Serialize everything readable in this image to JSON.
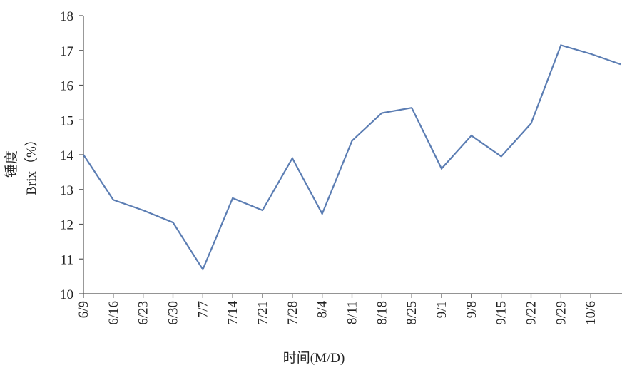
{
  "chart_data": {
    "type": "line",
    "y_label": [
      "锤度",
      "Brix（%）"
    ],
    "x_label": "时间(M/D)",
    "categories": [
      "6/9",
      "6/16",
      "6/23",
      "6/30",
      "7/7",
      "7/14",
      "7/21",
      "7/28",
      "8/4",
      "8/11",
      "8/18",
      "8/25",
      "9/1",
      "9/8",
      "9/15",
      "9/22",
      "9/29",
      "10/6",
      null
    ],
    "series": [
      {
        "color": "#5b7db3",
        "values": [
          14.0,
          12.7,
          12.4,
          12.05,
          10.7,
          12.75,
          12.4,
          13.9,
          12.3,
          14.4,
          15.2,
          15.35,
          13.6,
          14.55,
          13.95,
          14.9,
          17.15,
          16.9,
          16.6
        ]
      }
    ],
    "ylim": [
      10,
      18
    ],
    "yticks": [
      10,
      11,
      12,
      13,
      14,
      15,
      16,
      17,
      18
    ],
    "grid": false
  }
}
